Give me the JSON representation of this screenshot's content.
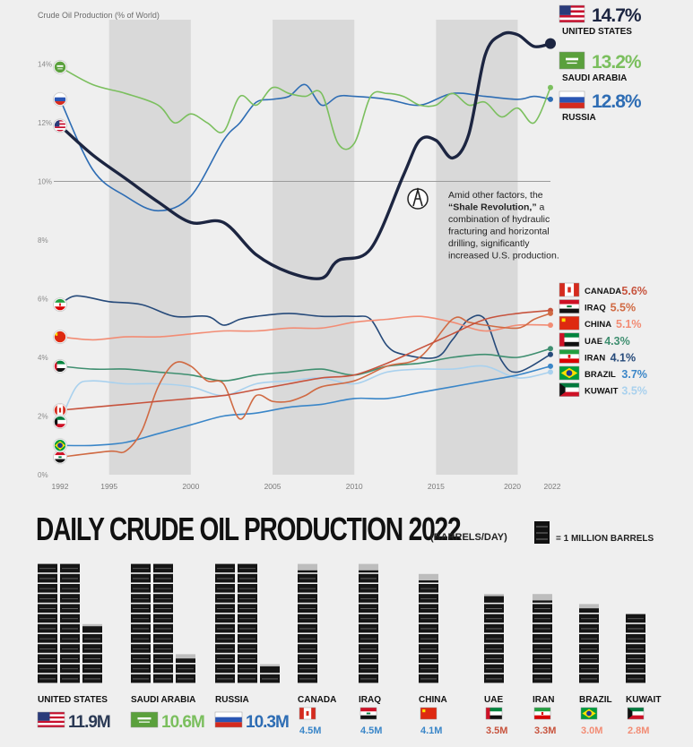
{
  "chart_data": [
    {
      "type": "line",
      "title": "Crude Oil Production (% of World)",
      "x_ticks": [
        "1992",
        "1995",
        "2000",
        "2005",
        "2010",
        "2015",
        "2020",
        "2022"
      ],
      "y_ticks": [
        "0%",
        "2%",
        "4%",
        "6%",
        "8%",
        "10%",
        "12%",
        "14%"
      ],
      "ylim": [
        0,
        15.3
      ],
      "xlim": [
        1992,
        2022
      ],
      "grid": "alternating vertical bands",
      "annotation": {
        "prefix": "Amid other factors, the",
        "bold": "“Shale Revolution,”",
        "rest": "a combination of hydraulic fracturing and horizontal drilling, significantly increased U.S. production.",
        "lines": [
          "Amid other factors, the",
          "“Shale Revolution,” a",
          "combination of hydraulic",
          "fracturing and horizontal",
          "drilling, significantly",
          "increased U.S. production."
        ]
      },
      "series": [
        {
          "name": "UNITED STATES",
          "label_value": "14.7%",
          "color": "#1c2541",
          "flag": "us",
          "x": [
            1992,
            1994,
            1996,
            1998,
            2000,
            2002,
            2004,
            2006,
            2008,
            2009,
            2011,
            2013,
            2014,
            2015,
            2016,
            2017,
            2018,
            2019,
            2020,
            2021,
            2022
          ],
          "y": [
            11.9,
            10.9,
            10.1,
            9.3,
            8.6,
            8.6,
            7.5,
            6.9,
            6.7,
            7.3,
            7.7,
            10.2,
            11.4,
            11.4,
            10.8,
            11.6,
            14.3,
            15.0,
            15.0,
            14.6,
            14.7
          ]
        },
        {
          "name": "SAUDI ARABIA",
          "label_value": "13.2%",
          "color": "#7bbf5e",
          "flag": "sa",
          "x": [
            1992,
            1994,
            1996,
            1998,
            1999,
            2000,
            2001,
            2002,
            2003,
            2004,
            2005,
            2006,
            2007,
            2008,
            2009,
            2010,
            2011,
            2012,
            2013,
            2014,
            2015,
            2016,
            2017,
            2018,
            2019,
            2020,
            2021,
            2022
          ],
          "y": [
            13.9,
            13.3,
            13.0,
            12.6,
            12.0,
            12.3,
            12.0,
            11.7,
            12.9,
            12.6,
            13.2,
            13.0,
            12.9,
            13.0,
            11.3,
            11.3,
            12.9,
            13.0,
            12.9,
            12.6,
            12.6,
            13.0,
            12.6,
            12.7,
            12.2,
            12.5,
            12.0,
            13.2
          ]
        },
        {
          "name": "RUSSIA",
          "label_value": "12.8%",
          "color": "#2e6db4",
          "flag": "ru",
          "x": [
            1992,
            1994,
            1996,
            1998,
            2000,
            2002,
            2003,
            2004,
            2005,
            2006,
            2007,
            2008,
            2009,
            2010,
            2012,
            2014,
            2016,
            2018,
            2020,
            2021,
            2022
          ],
          "y": [
            12.8,
            10.4,
            9.5,
            9.0,
            9.5,
            11.4,
            12.0,
            12.7,
            12.8,
            12.9,
            13.3,
            12.6,
            12.9,
            12.9,
            12.8,
            12.6,
            13.0,
            12.9,
            12.8,
            12.9,
            12.8
          ]
        },
        {
          "name": "CANADA",
          "label_value": "5.6%",
          "color": "#c7533d",
          "flag": "ca",
          "x": [
            1992,
            1994,
            1996,
            1998,
            2000,
            2002,
            2004,
            2006,
            2008,
            2010,
            2012,
            2014,
            2016,
            2018,
            2020,
            2022
          ],
          "y": [
            2.2,
            2.3,
            2.4,
            2.5,
            2.6,
            2.7,
            2.9,
            3.1,
            3.3,
            3.4,
            3.8,
            4.3,
            4.8,
            5.3,
            5.5,
            5.6
          ]
        },
        {
          "name": "IRAQ",
          "label_value": "5.5%",
          "color": "#d06a43",
          "flag": "iq",
          "x": [
            1992,
            1995,
            1996,
            1997,
            1998,
            1999,
            2000,
            2001,
            2002,
            2003,
            2004,
            2005,
            2006,
            2007,
            2008,
            2010,
            2012,
            2014,
            2016,
            2017,
            2018,
            2020,
            2021,
            2022
          ],
          "y": [
            0.6,
            0.8,
            0.8,
            1.5,
            3.0,
            3.8,
            3.7,
            3.2,
            3.1,
            1.9,
            2.7,
            2.5,
            2.5,
            2.7,
            3.0,
            3.2,
            3.7,
            4.0,
            5.3,
            5.2,
            5.1,
            5.0,
            5.3,
            5.5
          ]
        },
        {
          "name": "CHINA",
          "label_value": "5.1%",
          "color": "#f28c74",
          "flag": "cn",
          "x": [
            1992,
            1994,
            1996,
            1998,
            2000,
            2002,
            2004,
            2006,
            2008,
            2010,
            2012,
            2014,
            2016,
            2018,
            2020,
            2022
          ],
          "y": [
            4.7,
            4.6,
            4.7,
            4.7,
            4.8,
            4.9,
            4.9,
            5.0,
            5.0,
            5.2,
            5.3,
            5.4,
            5.2,
            4.9,
            5.1,
            5.1
          ]
        },
        {
          "name": "UAE",
          "label_value": "4.3%",
          "color": "#3f8f70",
          "flag": "ae",
          "x": [
            1992,
            1994,
            1996,
            1998,
            2000,
            2002,
            2004,
            2006,
            2008,
            2010,
            2012,
            2014,
            2016,
            2018,
            2020,
            2022
          ],
          "y": [
            3.7,
            3.6,
            3.6,
            3.5,
            3.4,
            3.2,
            3.4,
            3.5,
            3.6,
            3.4,
            3.7,
            3.8,
            4.0,
            4.1,
            4.0,
            4.3
          ]
        },
        {
          "name": "IRAN",
          "label_value": "4.1%",
          "color": "#264a7a",
          "flag": "ir",
          "x": [
            1992,
            1993,
            1995,
            1997,
            1999,
            2001,
            2002,
            2003,
            2004,
            2006,
            2008,
            2010,
            2011,
            2012,
            2013,
            2015,
            2016,
            2017,
            2018,
            2019,
            2020,
            2022
          ],
          "y": [
            5.8,
            6.1,
            5.9,
            5.8,
            5.4,
            5.4,
            5.1,
            5.3,
            5.4,
            5.5,
            5.4,
            5.4,
            5.3,
            4.4,
            4.1,
            4.0,
            4.6,
            5.3,
            5.3,
            3.9,
            3.5,
            4.1
          ]
        },
        {
          "name": "BRAZIL",
          "label_value": "3.7%",
          "color": "#3a86c8",
          "flag": "br",
          "x": [
            1992,
            1994,
            1996,
            1998,
            2000,
            2002,
            2004,
            2006,
            2008,
            2010,
            2012,
            2014,
            2016,
            2018,
            2020,
            2022
          ],
          "y": [
            1.0,
            1.0,
            1.1,
            1.4,
            1.7,
            2.0,
            2.1,
            2.3,
            2.4,
            2.6,
            2.6,
            2.8,
            3.0,
            3.2,
            3.4,
            3.7
          ]
        },
        {
          "name": "KUWAIT",
          "label_value": "3.5%",
          "color": "#a9d1ee",
          "flag": "kw",
          "x": [
            1992,
            1993,
            1994,
            1996,
            1998,
            2000,
            2002,
            2004,
            2006,
            2008,
            2010,
            2012,
            2014,
            2016,
            2018,
            2020,
            2022
          ],
          "y": [
            1.8,
            3.0,
            3.2,
            3.1,
            3.1,
            3.0,
            2.7,
            3.1,
            3.2,
            3.3,
            3.1,
            3.5,
            3.6,
            3.6,
            3.7,
            3.3,
            3.5
          ]
        }
      ]
    },
    {
      "type": "bar",
      "title": "DAILY CRUDE OIL PRODUCTION 2022",
      "unit": "(BARRELS/DAY)",
      "legend": "= 1 MILLION BARRELS",
      "categories": [
        "UNITED STATES",
        "SAUDI ARABIA",
        "RUSSIA",
        "CANADA",
        "IRAQ",
        "CHINA",
        "UAE",
        "IRAN",
        "BRAZIL",
        "KUWAIT"
      ],
      "values": [
        11.9,
        10.6,
        10.3,
        4.5,
        4.5,
        4.1,
        3.5,
        3.3,
        3.0,
        2.8
      ],
      "value_labels": [
        "11.9M",
        "10.6M",
        "10.3M",
        "4.5M",
        "4.5M",
        "4.1M",
        "3.5M",
        "3.3M",
        "3.0M",
        "2.8M"
      ],
      "flags": [
        "us",
        "sa",
        "ru",
        "ca",
        "iq",
        "cn",
        "ae",
        "ir",
        "br",
        "kw"
      ],
      "label_colors": [
        "#2b3a55",
        "#7bbf5e",
        "#2e6db4",
        "#3a86c8",
        "#3a86c8",
        "#3a86c8",
        "#c7533d",
        "#c7533d",
        "#f28c74",
        "#f28c74"
      ]
    }
  ]
}
